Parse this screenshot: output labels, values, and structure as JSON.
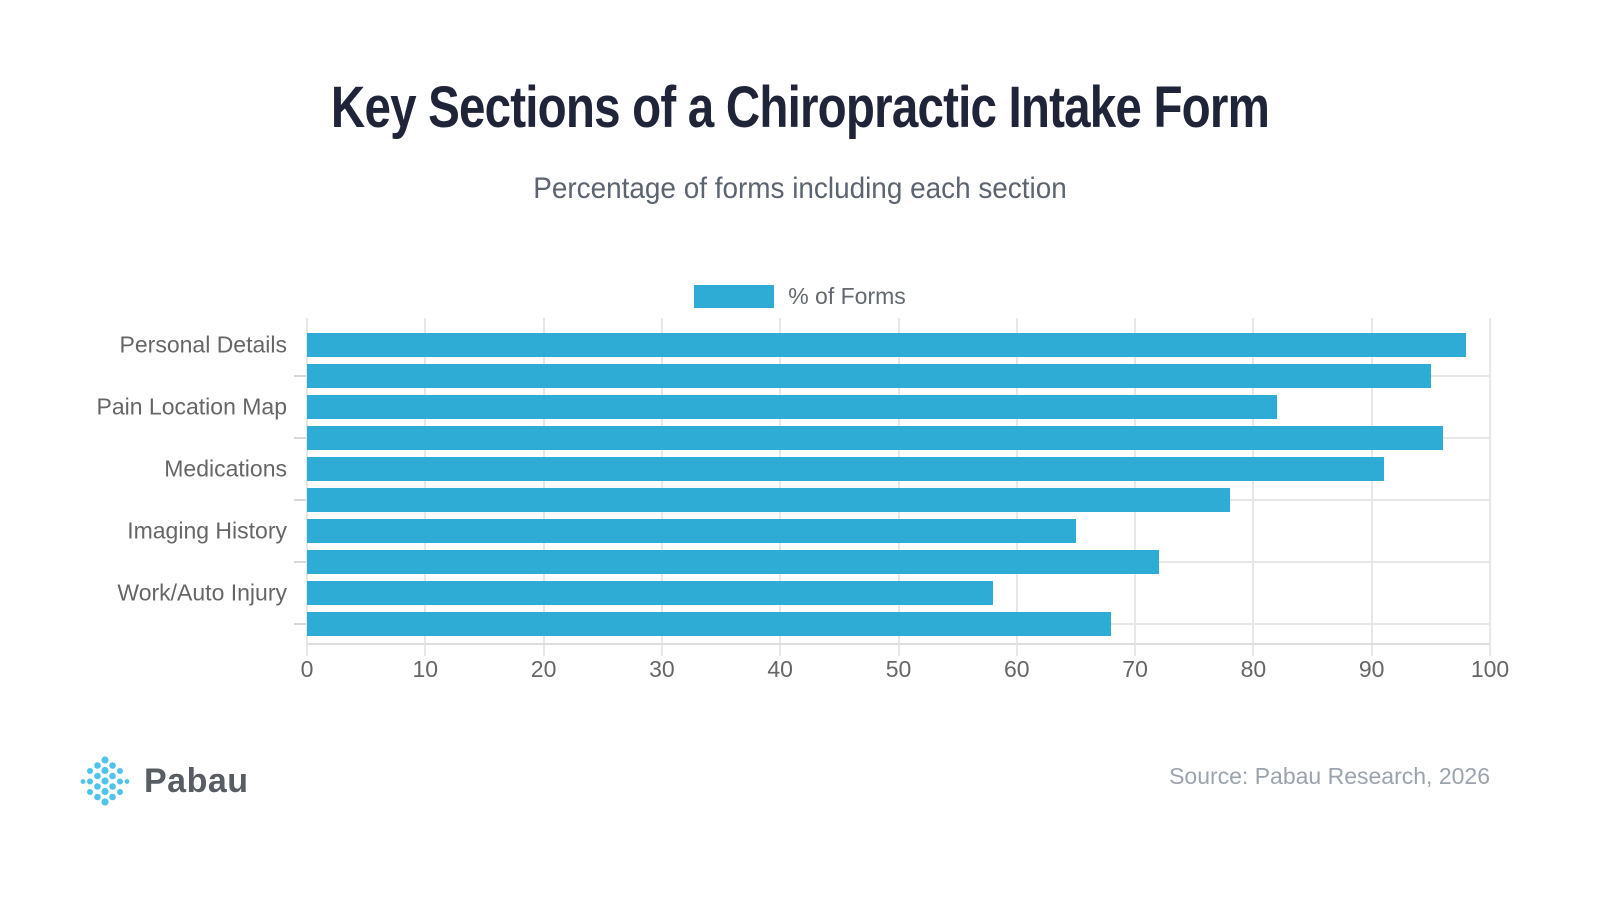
{
  "header": {
    "title": "Key Sections of a Chiropractic Intake Form",
    "subtitle": "Percentage of forms including each section"
  },
  "legend": {
    "label": "% of Forms"
  },
  "chart_data": {
    "type": "bar",
    "orientation": "horizontal",
    "title": "Key Sections of a Chiropractic Intake Form",
    "subtitle": "Percentage of forms including each section",
    "legend_entries": [
      "% of Forms"
    ],
    "legend_position": "top-center",
    "categories": [
      "Personal Details",
      "",
      "Pain Location Map",
      "",
      "Medications",
      "",
      "Imaging History",
      "",
      "Work/Auto Injury",
      ""
    ],
    "values": [
      98,
      95,
      82,
      96,
      91,
      78,
      65,
      72,
      58,
      68
    ],
    "xlim": [
      0,
      100
    ],
    "xticks": [
      0,
      10,
      20,
      30,
      40,
      50,
      60,
      70,
      80,
      90,
      100
    ],
    "grid": "on",
    "bar_color": "#2FACD6"
  },
  "footer": {
    "brand": "Pabau",
    "source": "Source: Pabau Research, 2026"
  },
  "colors": {
    "title": "#1F2438",
    "subtitle": "#5C6470",
    "bar": "#2FACD6",
    "axis_text": "#666666",
    "gridline": "#E7E7E7",
    "source_text": "#9BA3AD",
    "brand_text": "#575D63",
    "logo_dot": "#4FC4EA"
  }
}
